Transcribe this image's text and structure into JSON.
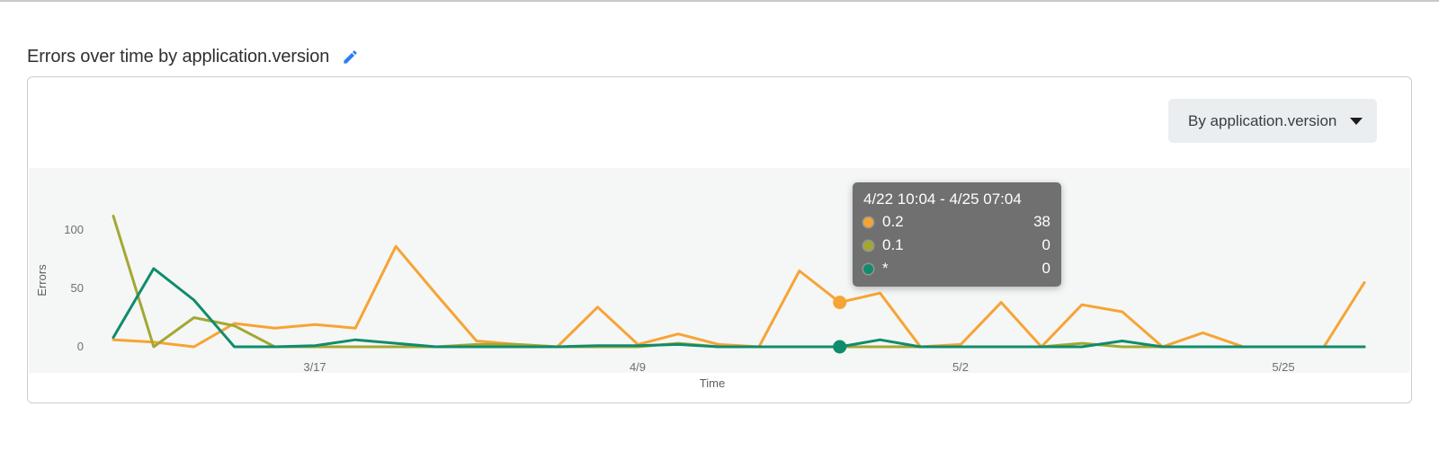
{
  "page": {
    "title": "Errors over time by application.version"
  },
  "toolbar": {
    "group_by_label": "By application.version"
  },
  "axes": {
    "y_title": "Errors",
    "x_title": "Time",
    "y_ticks": [
      "100",
      "50",
      "0"
    ],
    "x_ticks": [
      "3/17",
      "4/9",
      "5/2",
      "5/25"
    ]
  },
  "tooltip": {
    "header": "4/22 10:04 - 4/25 07:04",
    "rows": [
      {
        "series": "0.2",
        "value": "38"
      },
      {
        "series": "0.1",
        "value": "0"
      },
      {
        "series": "*",
        "value": "0"
      }
    ]
  },
  "colors": {
    "orange": "#f6a434",
    "olive": "#a2a832",
    "teal": "#0f8c6c",
    "accent_blue": "#2e7cf6",
    "tooltip_bg": "#6b6b6b",
    "plot_band": "#f5f6f6"
  },
  "chart_data": {
    "type": "line",
    "title": "Errors over time by application.version",
    "xlabel": "Time",
    "ylabel": "Errors",
    "ylim": [
      0,
      115
    ],
    "y_ticks": [
      0,
      50,
      100
    ],
    "x_ticks": [
      "3/17",
      "4/9",
      "5/2",
      "5/25"
    ],
    "x_tick_bucket_indices": [
      5,
      13,
      21,
      29
    ],
    "bucket_duration_hours": 69,
    "grid": false,
    "legend_position": "none",
    "series": [
      {
        "name": "0.2",
        "color": "#f6a434",
        "values": [
          6,
          4,
          0,
          20,
          16,
          19,
          16,
          86,
          45,
          5,
          2,
          0,
          34,
          2,
          11,
          2,
          0,
          65,
          38,
          46,
          0,
          2,
          38,
          0,
          36,
          30,
          0,
          12,
          0,
          0,
          0,
          55
        ]
      },
      {
        "name": "0.1",
        "color": "#a2a832",
        "values": [
          112,
          0,
          25,
          18,
          0,
          0,
          0,
          0,
          0,
          2,
          2,
          0,
          0,
          0,
          3,
          0,
          0,
          0,
          0,
          0,
          0,
          0,
          0,
          0,
          3,
          0,
          0,
          0,
          0,
          0,
          0,
          0
        ]
      },
      {
        "name": "*",
        "color": "#0f8c6c",
        "values": [
          8,
          67,
          40,
          0,
          0,
          1,
          6,
          3,
          0,
          0,
          0,
          0,
          1,
          1,
          2,
          0,
          0,
          0,
          0,
          6,
          0,
          0,
          0,
          0,
          0,
          5,
          0,
          0,
          0,
          0,
          0,
          0
        ]
      }
    ],
    "highlight": {
      "bucket_index": 18,
      "bucket_label": "4/22 10:04 - 4/25 07:04",
      "dot_series": [
        "0.2",
        "*"
      ],
      "values": {
        "0.2": 38,
        "0.1": 0,
        "*": 0
      }
    }
  }
}
